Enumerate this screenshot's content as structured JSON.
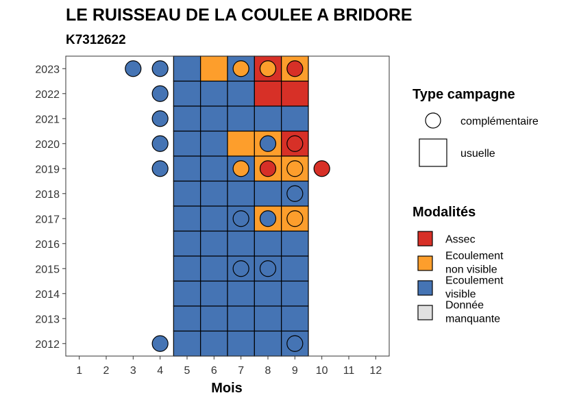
{
  "chart_data": {
    "type": "heatmap",
    "title": "LE RUISSEAU DE LA COULEE A BRIDORE",
    "subtitle": "K7312622",
    "xlabel": "Mois",
    "ylabel": "",
    "x_ticks": [
      "1",
      "2",
      "3",
      "4",
      "5",
      "6",
      "7",
      "8",
      "9",
      "10",
      "11",
      "12"
    ],
    "y_ticks": [
      "2023",
      "2022",
      "2021",
      "2020",
      "2019",
      "2018",
      "2017",
      "2016",
      "2015",
      "2014",
      "2013",
      "2012"
    ],
    "xlim": [
      0.5,
      12.5
    ],
    "ylim": [
      2011.5,
      2023.5
    ],
    "colors": {
      "Assec": "#d73027",
      "Ecoulement non visible": "#fd9e2c",
      "Ecoulement visible": "#4574b4",
      "Donnée manquante": "#e0e0e0"
    },
    "usuelle": [
      {
        "year": 2023,
        "values": {
          "5": "Ecoulement visible",
          "6": "Ecoulement non visible",
          "7": "Ecoulement visible",
          "8": "Assec",
          "9": "Ecoulement non visible"
        }
      },
      {
        "year": 2022,
        "values": {
          "5": "Ecoulement visible",
          "6": "Ecoulement visible",
          "7": "Ecoulement visible",
          "8": "Assec",
          "9": "Assec"
        }
      },
      {
        "year": 2021,
        "values": {
          "5": "Ecoulement visible",
          "6": "Ecoulement visible",
          "7": "Ecoulement visible",
          "8": "Ecoulement visible",
          "9": "Ecoulement visible"
        }
      },
      {
        "year": 2020,
        "values": {
          "5": "Ecoulement visible",
          "6": "Ecoulement visible",
          "7": "Ecoulement non visible",
          "8": "Ecoulement non visible",
          "9": "Assec"
        }
      },
      {
        "year": 2019,
        "values": {
          "5": "Ecoulement visible",
          "6": "Ecoulement visible",
          "7": "Ecoulement visible",
          "8": "Ecoulement non visible",
          "9": "Ecoulement non visible"
        }
      },
      {
        "year": 2018,
        "values": {
          "5": "Ecoulement visible",
          "6": "Ecoulement visible",
          "7": "Ecoulement visible",
          "8": "Ecoulement visible",
          "9": "Ecoulement visible"
        }
      },
      {
        "year": 2017,
        "values": {
          "5": "Ecoulement visible",
          "6": "Ecoulement visible",
          "7": "Ecoulement visible",
          "8": "Ecoulement non visible",
          "9": "Ecoulement non visible"
        }
      },
      {
        "year": 2016,
        "values": {
          "5": "Ecoulement visible",
          "6": "Ecoulement visible",
          "7": "Ecoulement visible",
          "8": "Ecoulement visible",
          "9": "Ecoulement visible"
        }
      },
      {
        "year": 2015,
        "values": {
          "5": "Ecoulement visible",
          "6": "Ecoulement visible",
          "7": "Ecoulement visible",
          "8": "Ecoulement visible",
          "9": "Ecoulement visible"
        }
      },
      {
        "year": 2014,
        "values": {
          "5": "Ecoulement visible",
          "6": "Ecoulement visible",
          "7": "Ecoulement visible",
          "8": "Ecoulement visible",
          "9": "Ecoulement visible"
        }
      },
      {
        "year": 2013,
        "values": {
          "5": "Ecoulement visible",
          "6": "Ecoulement visible",
          "7": "Ecoulement visible",
          "8": "Ecoulement visible",
          "9": "Ecoulement visible"
        }
      },
      {
        "year": 2012,
        "values": {
          "5": "Ecoulement visible",
          "6": "Ecoulement visible",
          "7": "Ecoulement visible",
          "8": "Ecoulement visible",
          "9": "Ecoulement visible"
        }
      }
    ],
    "complementaire": [
      {
        "year": 2023,
        "month": 3,
        "modalite": "Ecoulement visible"
      },
      {
        "year": 2023,
        "month": 4,
        "modalite": "Ecoulement visible"
      },
      {
        "year": 2023,
        "month": 7,
        "modalite": "Ecoulement non visible"
      },
      {
        "year": 2023,
        "month": 8,
        "modalite": "Ecoulement non visible"
      },
      {
        "year": 2023,
        "month": 9,
        "modalite": "Assec"
      },
      {
        "year": 2022,
        "month": 4,
        "modalite": "Ecoulement visible"
      },
      {
        "year": 2021,
        "month": 4,
        "modalite": "Ecoulement visible"
      },
      {
        "year": 2020,
        "month": 4,
        "modalite": "Ecoulement visible"
      },
      {
        "year": 2020,
        "month": 8,
        "modalite": "Ecoulement visible"
      },
      {
        "year": 2020,
        "month": 9,
        "modalite": "Assec"
      },
      {
        "year": 2019,
        "month": 4,
        "modalite": "Ecoulement visible"
      },
      {
        "year": 2019,
        "month": 7,
        "modalite": "Ecoulement non visible"
      },
      {
        "year": 2019,
        "month": 8,
        "modalite": "Assec"
      },
      {
        "year": 2019,
        "month": 9,
        "modalite": "Ecoulement non visible"
      },
      {
        "year": 2019,
        "month": 10,
        "modalite": "Assec"
      },
      {
        "year": 2018,
        "month": 9,
        "modalite": "Ecoulement visible"
      },
      {
        "year": 2017,
        "month": 7,
        "modalite": "Ecoulement visible"
      },
      {
        "year": 2017,
        "month": 8,
        "modalite": "Ecoulement visible"
      },
      {
        "year": 2017,
        "month": 9,
        "modalite": "Ecoulement non visible"
      },
      {
        "year": 2015,
        "month": 7,
        "modalite": "Ecoulement visible"
      },
      {
        "year": 2015,
        "month": 8,
        "modalite": "Ecoulement visible"
      },
      {
        "year": 2012,
        "month": 4,
        "modalite": "Ecoulement visible"
      },
      {
        "year": 2012,
        "month": 9,
        "modalite": "Ecoulement visible"
      }
    ],
    "legend": {
      "type_title": "Type campagne",
      "type_items": [
        "complémentaire",
        "usuelle"
      ],
      "modalites_title": "Modalités",
      "modalites_items": [
        {
          "key": "Assec",
          "label_lines": [
            "Assec"
          ]
        },
        {
          "key": "Ecoulement non visible",
          "label_lines": [
            "Ecoulement",
            "non visible"
          ]
        },
        {
          "key": "Ecoulement visible",
          "label_lines": [
            "Ecoulement",
            "visible"
          ]
        },
        {
          "key": "Donnée manquante",
          "label_lines": [
            "Donnée",
            "manquante"
          ]
        }
      ],
      "placement": "right"
    }
  }
}
